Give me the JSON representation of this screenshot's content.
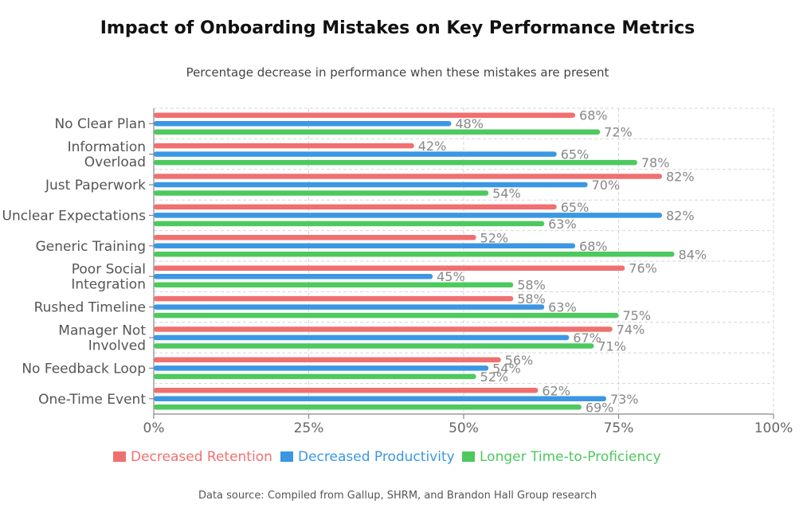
{
  "chart_data": {
    "type": "bar",
    "orientation": "horizontal",
    "title": "Impact of Onboarding Mistakes on Key Performance Metrics",
    "subtitle": "Percentage decrease in performance when these mistakes are present",
    "source": "Data source: Compiled from Gallup, SHRM, and Brandon Hall Group research",
    "categories": [
      [
        "No Clear Plan"
      ],
      [
        "Information",
        "Overload"
      ],
      [
        "Just Paperwork"
      ],
      [
        "Unclear Expectations"
      ],
      [
        "Generic Training"
      ],
      [
        "Poor Social",
        "Integration"
      ],
      [
        "Rushed Timeline"
      ],
      [
        "Manager Not",
        "Involved"
      ],
      [
        "No Feedback Loop"
      ],
      [
        "One-Time Event"
      ]
    ],
    "series": [
      {
        "name": "Decreased Retention",
        "color": "#f07070",
        "values": [
          68,
          42,
          82,
          65,
          52,
          76,
          58,
          74,
          56,
          62
        ]
      },
      {
        "name": "Decreased Productivity",
        "color": "#3b97e3",
        "values": [
          48,
          65,
          70,
          82,
          68,
          45,
          63,
          67,
          54,
          73
        ]
      },
      {
        "name": "Longer Time-to-Proficiency",
        "color": "#4dc95e",
        "values": [
          72,
          78,
          54,
          63,
          84,
          58,
          75,
          71,
          52,
          69
        ]
      }
    ],
    "xlim": [
      0,
      100
    ],
    "xticks": [
      0,
      25,
      50,
      75,
      100
    ],
    "xtick_labels": [
      "0%",
      "25%",
      "50%",
      "75%",
      "100%"
    ],
    "value_suffix": "%",
    "grid": true,
    "legend_position": "bottom"
  }
}
